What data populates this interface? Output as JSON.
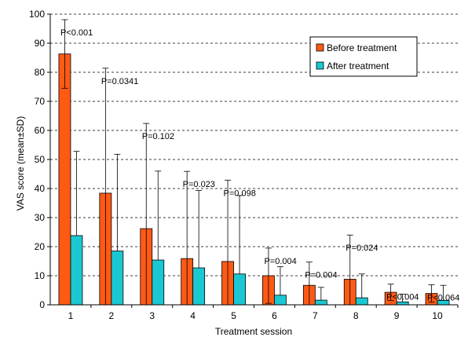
{
  "chart_data": {
    "type": "bar",
    "xlabel": "Treatment session",
    "ylabel": "VAS score (mean±SD)",
    "ylim": [
      0,
      100
    ],
    "yticks": [
      0,
      10,
      20,
      30,
      40,
      50,
      60,
      70,
      80,
      90,
      100
    ],
    "grid": "horizontal dashed",
    "legend_position": "top-right",
    "categories": [
      "1",
      "2",
      "3",
      "4",
      "5",
      "6",
      "7",
      "8",
      "9",
      "10"
    ],
    "series": [
      {
        "name": "Before treatment",
        "color": "#ff5a14",
        "values": [
          86.3,
          38.4,
          26.2,
          15.9,
          14.9,
          10.0,
          6.7,
          8.8,
          4.3,
          3.9
        ],
        "errors": [
          11.8,
          43.0,
          36.2,
          30.0,
          28.0,
          9.5,
          8.0,
          15.2,
          2.8,
          3.0
        ]
      },
      {
        "name": "After treatment",
        "color": "#1ac8d2",
        "values": [
          23.8,
          18.5,
          15.4,
          12.7,
          10.6,
          3.3,
          1.6,
          2.4,
          1.0,
          1.5
        ],
        "errors": [
          29.0,
          33.3,
          30.6,
          26.6,
          27.0,
          9.8,
          4.4,
          8.2,
          2.7,
          5.2
        ]
      }
    ],
    "annotations": [
      "P<0.001",
      "P=0.0341",
      "P=0.102",
      "P=0.023",
      "P=0.098",
      "P=0.004",
      "P=0.004",
      "P=0.024",
      "P<0.004",
      "P<0.064"
    ]
  }
}
